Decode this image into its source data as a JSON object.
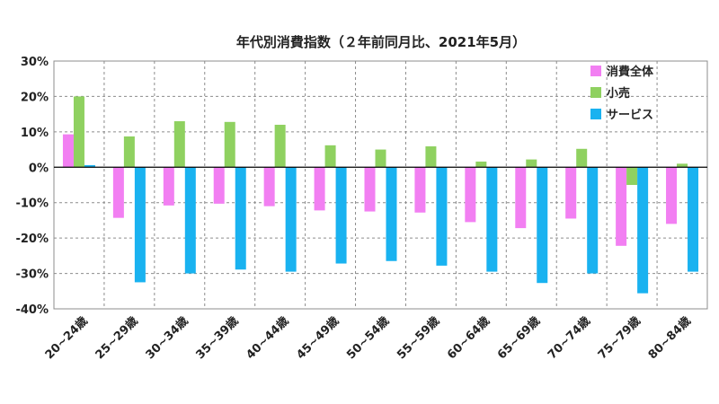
{
  "chart_data": {
    "type": "bar",
    "title": "年代別消費指数（２年前同月比、2021年5月）",
    "xlabel": "",
    "ylabel": "",
    "ylim": [
      -40,
      30
    ],
    "yticks": [
      30,
      20,
      10,
      0,
      -10,
      -20,
      -30,
      -40
    ],
    "ytick_labels": [
      "30%",
      "20%",
      "10%",
      "0%",
      "-10%",
      "-20%",
      "-30%",
      "-40%"
    ],
    "categories": [
      "20~24歳",
      "25~29歳",
      "30~34歳",
      "35~39歳",
      "40~44歳",
      "45~49歳",
      "50~54歳",
      "55~59歳",
      "60~64歳",
      "65~69歳",
      "70~74歳",
      "75~79歳",
      "80~84歳"
    ],
    "series": [
      {
        "name": "消費全体",
        "color": "#f27ff2",
        "values": [
          9.3,
          -14.3,
          -10.8,
          -10.3,
          -11.0,
          -12.2,
          -12.5,
          -12.8,
          -15.5,
          -17.2,
          -14.5,
          -22.2,
          -16.0
        ]
      },
      {
        "name": "小売",
        "color": "#8fd160",
        "values": [
          20.0,
          8.7,
          13.0,
          12.8,
          12.0,
          6.2,
          5.0,
          5.9,
          1.6,
          2.2,
          5.2,
          -5.0,
          1.0
        ]
      },
      {
        "name": "サービス",
        "color": "#19b2f0",
        "values": [
          0.6,
          -32.5,
          -30.0,
          -28.9,
          -29.5,
          -27.2,
          -26.5,
          -27.8,
          -29.5,
          -32.7,
          -30.0,
          -35.6,
          -29.5
        ]
      }
    ],
    "legend": "top-right",
    "grid": true
  }
}
